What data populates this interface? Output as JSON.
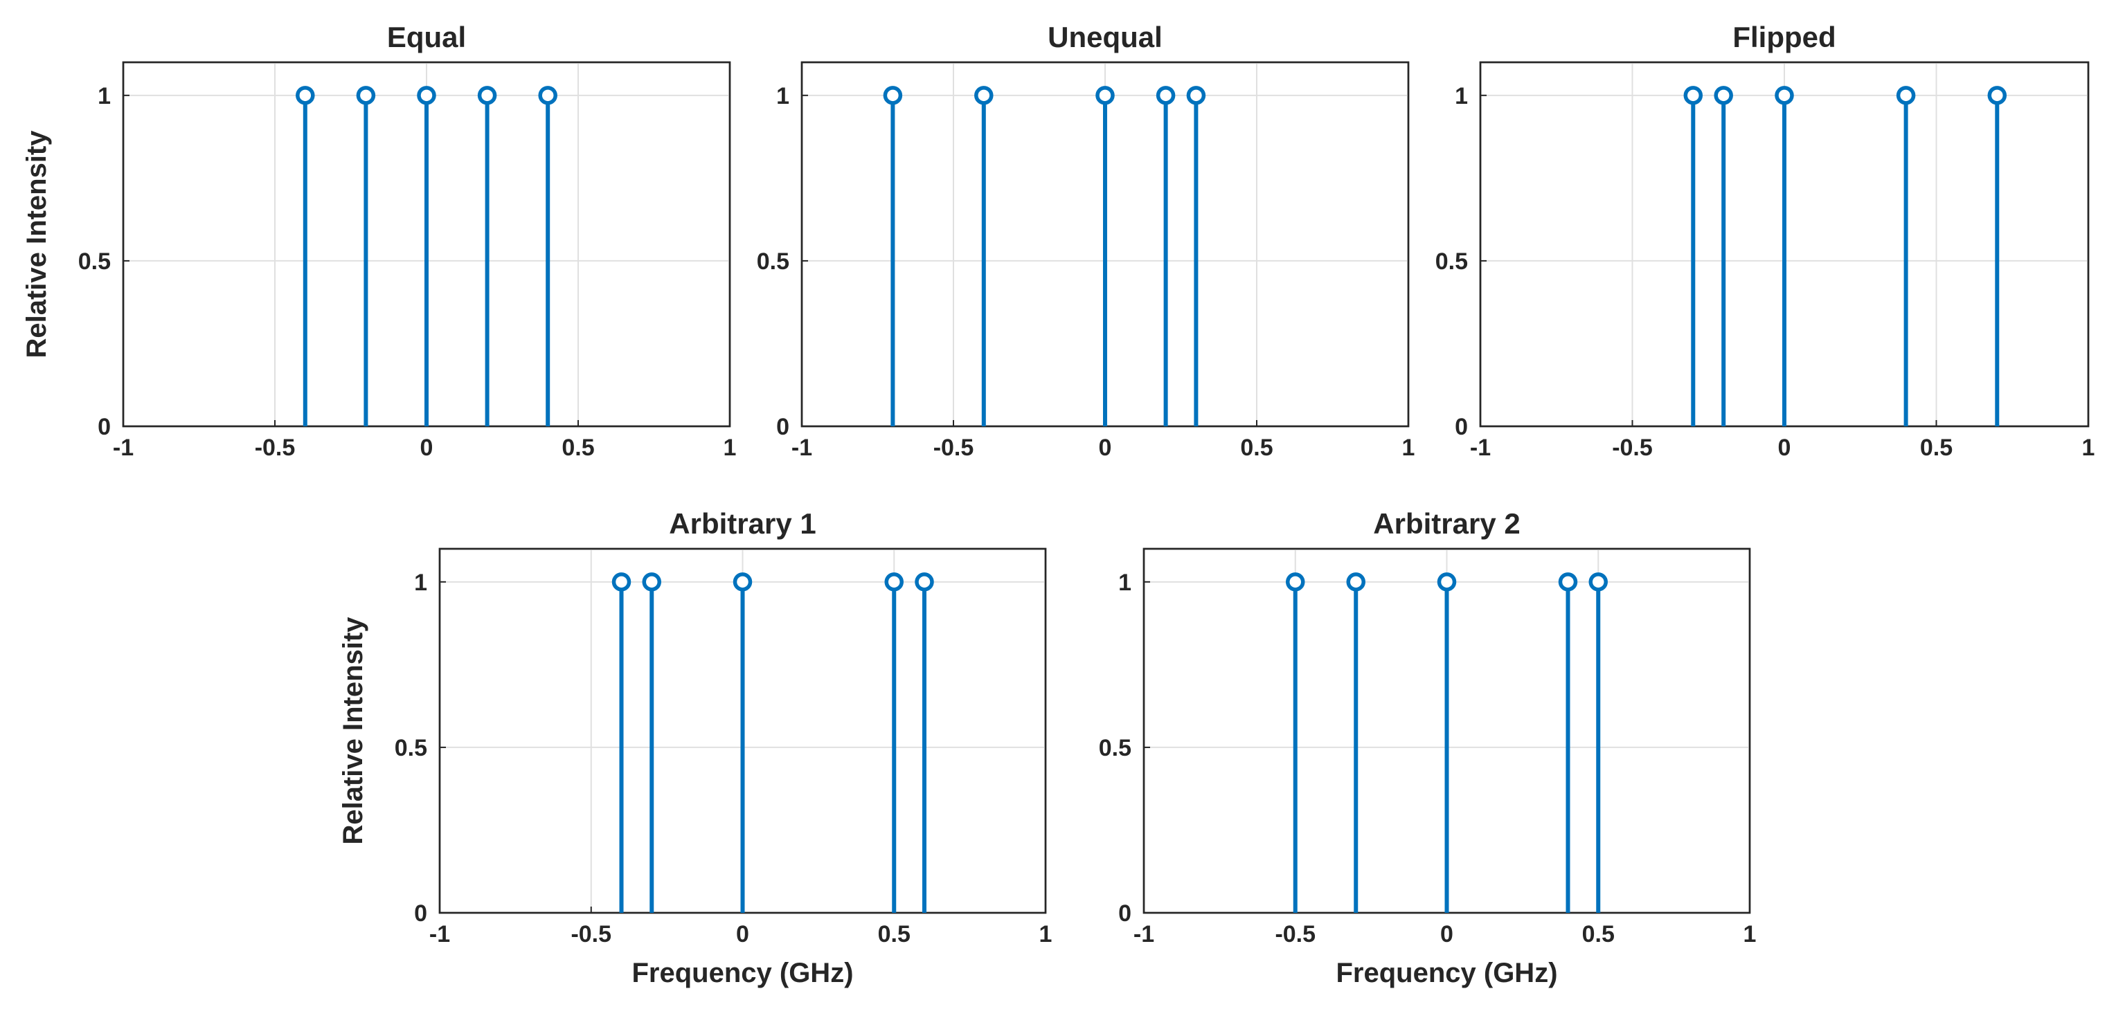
{
  "colors": {
    "stem": "#0072BD",
    "axis": "#262626",
    "grid": "#e0e0e0"
  },
  "chart_data": [
    {
      "type": "stem",
      "title": "Equal",
      "xlabel": "",
      "ylabel": "Relative Intensity",
      "xlim": [
        -1,
        1
      ],
      "ylim": [
        0,
        1.1
      ],
      "xticks": [
        -1,
        -0.5,
        0,
        0.5,
        1
      ],
      "xtick_labels": [
        "-1",
        "-0.5",
        "0",
        "0.5",
        "1"
      ],
      "yticks": [
        0,
        0.5,
        1
      ],
      "ytick_labels": [
        "0",
        "0.5",
        "1"
      ],
      "grid": true,
      "x": [
        -0.4,
        -0.2,
        0,
        0.2,
        0.4
      ],
      "y": [
        1,
        1,
        1,
        1,
        1
      ]
    },
    {
      "type": "stem",
      "title": "Unequal",
      "xlabel": "",
      "ylabel": "",
      "xlim": [
        -1,
        1
      ],
      "ylim": [
        0,
        1.1
      ],
      "xticks": [
        -1,
        -0.5,
        0,
        0.5,
        1
      ],
      "xtick_labels": [
        "-1",
        "-0.5",
        "0",
        "0.5",
        "1"
      ],
      "yticks": [
        0,
        0.5,
        1
      ],
      "ytick_labels": [
        "0",
        "0.5",
        "1"
      ],
      "grid": true,
      "x": [
        -0.7,
        -0.4,
        0,
        0.2,
        0.3
      ],
      "y": [
        1,
        1,
        1,
        1,
        1
      ]
    },
    {
      "type": "stem",
      "title": "Flipped",
      "xlabel": "",
      "ylabel": "",
      "xlim": [
        -1,
        1
      ],
      "ylim": [
        0,
        1.1
      ],
      "xticks": [
        -1,
        -0.5,
        0,
        0.5,
        1
      ],
      "xtick_labels": [
        "-1",
        "-0.5",
        "0",
        "0.5",
        "1"
      ],
      "yticks": [
        0,
        0.5,
        1
      ],
      "ytick_labels": [
        "0",
        "0.5",
        "1"
      ],
      "grid": true,
      "x": [
        -0.3,
        -0.2,
        0,
        0.4,
        0.7
      ],
      "y": [
        1,
        1,
        1,
        1,
        1
      ]
    },
    {
      "type": "stem",
      "title": "Arbitrary 1",
      "xlabel": "Frequency (GHz)",
      "ylabel": "Relative Intensity",
      "xlim": [
        -1,
        1
      ],
      "ylim": [
        0,
        1.1
      ],
      "xticks": [
        -1,
        -0.5,
        0,
        0.5,
        1
      ],
      "xtick_labels": [
        "-1",
        "-0.5",
        "0",
        "0.5",
        "1"
      ],
      "yticks": [
        0,
        0.5,
        1
      ],
      "ytick_labels": [
        "0",
        "0.5",
        "1"
      ],
      "grid": true,
      "x": [
        -0.4,
        -0.3,
        0,
        0.5,
        0.6
      ],
      "y": [
        1,
        1,
        1,
        1,
        1
      ]
    },
    {
      "type": "stem",
      "title": "Arbitrary 2",
      "xlabel": "Frequency (GHz)",
      "ylabel": "",
      "xlim": [
        -1,
        1
      ],
      "ylim": [
        0,
        1.1
      ],
      "xticks": [
        -1,
        -0.5,
        0,
        0.5,
        1
      ],
      "xtick_labels": [
        "-1",
        "-0.5",
        "0",
        "0.5",
        "1"
      ],
      "yticks": [
        0,
        0.5,
        1
      ],
      "ytick_labels": [
        "0",
        "0.5",
        "1"
      ],
      "grid": true,
      "x": [
        -0.5,
        -0.3,
        0,
        0.4,
        0.5
      ],
      "y": [
        1,
        1,
        1,
        1,
        1
      ]
    }
  ]
}
